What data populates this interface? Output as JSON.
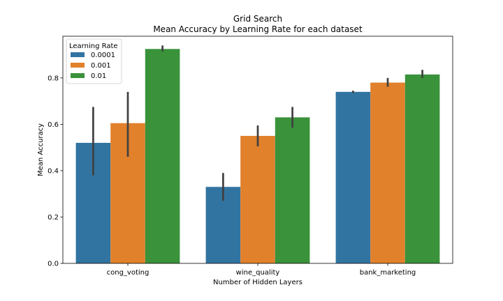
{
  "chart_data": {
    "type": "bar",
    "title": "Grid Search",
    "subtitle": "Mean Accuracy by Learning Rate for each dataset",
    "xlabel": "Number of Hidden Layers",
    "ylabel": "Mean Accuracy",
    "categories": [
      "cong_voting",
      "wine_quality",
      "bank_marketing"
    ],
    "ylim": [
      0,
      0.98
    ],
    "yticks": [
      0.0,
      0.2,
      0.4,
      0.6,
      0.8
    ],
    "ytick_labels": [
      "0.0",
      "0.2",
      "0.4",
      "0.6",
      "0.8"
    ],
    "grid": false,
    "legend": {
      "title": "Learning Rate",
      "placement": "top-left"
    },
    "series": [
      {
        "name": "0.0001",
        "color": "#3274a1",
        "values": [
          0.52,
          0.33,
          0.74
        ],
        "err_low": [
          0.38,
          0.27,
          0.735
        ],
        "err_high": [
          0.675,
          0.39,
          0.745
        ]
      },
      {
        "name": "0.001",
        "color": "#e1812c",
        "values": [
          0.605,
          0.55,
          0.78
        ],
        "err_low": [
          0.46,
          0.505,
          0.762
        ],
        "err_high": [
          0.74,
          0.595,
          0.8
        ]
      },
      {
        "name": "0.01",
        "color": "#3a923a",
        "values": [
          0.925,
          0.63,
          0.815
        ],
        "err_low": [
          0.915,
          0.585,
          0.8
        ],
        "err_high": [
          0.94,
          0.675,
          0.835
        ]
      }
    ]
  }
}
